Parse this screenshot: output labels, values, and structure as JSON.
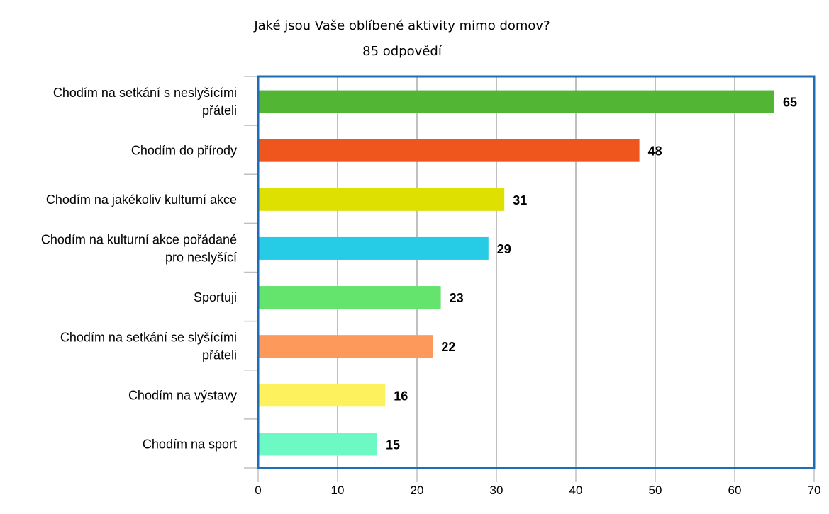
{
  "chart_data": {
    "type": "bar",
    "orientation": "horizontal",
    "title": "Jaké jsou Vaše oblíbené aktivity mimo domov?",
    "subtitle": "85 odpovědí",
    "categories": [
      [
        "Chodím na setkání s neslyšícími",
        "přáteli"
      ],
      [
        "Chodím do přírody"
      ],
      [
        "Chodím na jakékoliv kulturní akce"
      ],
      [
        "Chodím na kulturní akce pořádané",
        "pro neslyšící"
      ],
      [
        "Sportuji"
      ],
      [
        "Chodím na setkání se slyšícími",
        "přáteli"
      ],
      [
        "Chodím na výstavy"
      ],
      [
        "Chodím na sport"
      ]
    ],
    "values": [
      65,
      48,
      31,
      29,
      23,
      22,
      16,
      15
    ],
    "value_labels": [
      "65",
      "48",
      "31",
      "29",
      "23",
      "22",
      "16",
      "15"
    ],
    "colors": [
      "#52b534",
      "#ee561e",
      "#dde000",
      "#26cbe5",
      "#64e36d",
      "#fd9a5b",
      "#fdf25d",
      "#6cf9c4"
    ],
    "xlim": [
      0,
      70
    ],
    "xticks": [
      0,
      10,
      20,
      30,
      40,
      50,
      60,
      70
    ],
    "grid": true,
    "plot_border_color": "#1e6eb7",
    "grid_color": "#c0c0c0",
    "legend": "none"
  }
}
